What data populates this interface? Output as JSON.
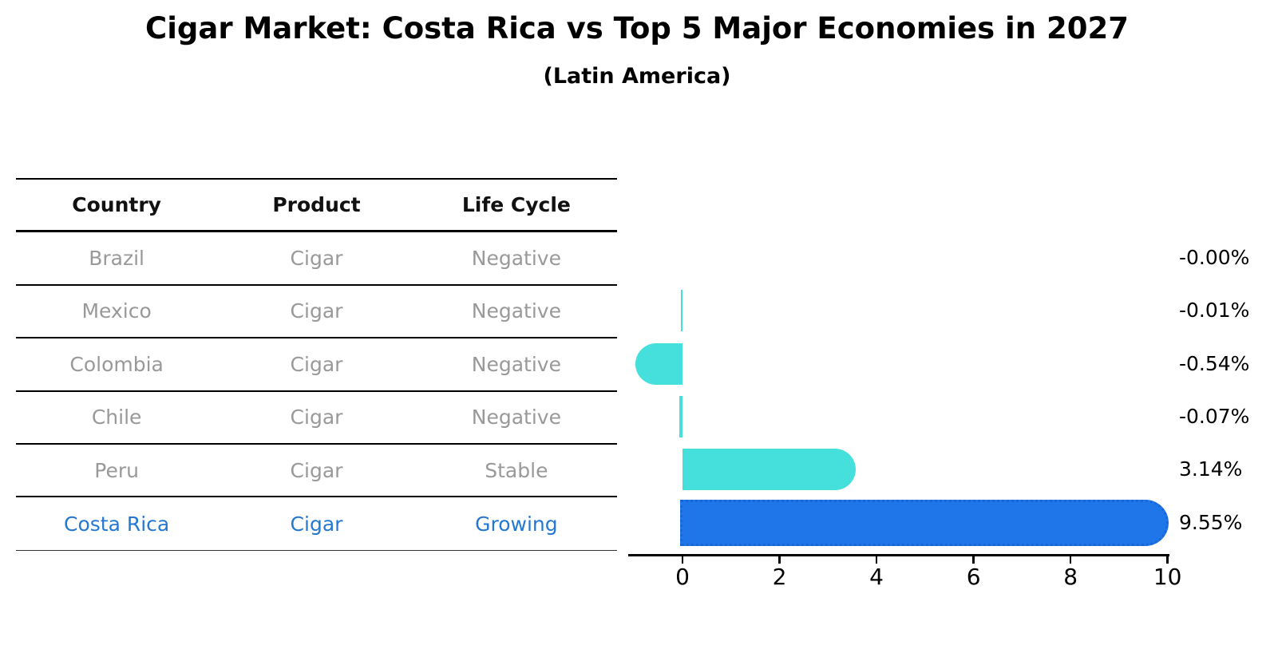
{
  "title": "Cigar Market: Costa Rica vs Top 5 Major Economies in 2027",
  "subtitle": "(Latin America)",
  "colors": {
    "bar": "#45E0DB",
    "bar_highlight": "#1E76E8",
    "highlight_border": "#1a66d9",
    "highlight_text": "#2478D0",
    "table_text": "#999999",
    "header_text": "#111111",
    "axis": "#000000",
    "background": "#ffffff"
  },
  "table": {
    "headers": [
      "Country",
      "Product",
      "Life Cycle"
    ],
    "rows": [
      {
        "country": "Brazil",
        "product": "Cigar",
        "life_cycle": "Negative",
        "highlight": false
      },
      {
        "country": "Mexico",
        "product": "Cigar",
        "life_cycle": "Negative",
        "highlight": false
      },
      {
        "country": "Colombia",
        "product": "Cigar",
        "life_cycle": "Negative",
        "highlight": false
      },
      {
        "country": "Chile",
        "product": "Cigar",
        "life_cycle": "Negative",
        "highlight": false
      },
      {
        "country": "Peru",
        "product": "Cigar",
        "life_cycle": "Stable",
        "highlight": false
      },
      {
        "country": "Costa Rica",
        "product": "Cigar",
        "life_cycle": "Growing",
        "highlight": true
      }
    ]
  },
  "chart_data": {
    "type": "bar",
    "orientation": "horizontal",
    "title": "Cigar Market: Costa Rica vs Top 5 Major Economies in 2027 (Latin America)",
    "categories": [
      "Brazil",
      "Mexico",
      "Colombia",
      "Chile",
      "Peru",
      "Costa Rica"
    ],
    "values": [
      -0.0,
      -0.01,
      -0.54,
      -0.07,
      3.14,
      9.55
    ],
    "value_labels": [
      "-0.00%",
      "-0.01%",
      "-0.54%",
      "-0.07%",
      "3.14%",
      "9.55%"
    ],
    "x_ticks": [
      0,
      2,
      4,
      6,
      8,
      10
    ],
    "x_tick_labels": [
      "0",
      "2",
      "4",
      "6",
      "8",
      "10"
    ],
    "xlim": [
      -1.12,
      10.05
    ],
    "grid": false,
    "legend": null,
    "highlight_index": 5
  }
}
